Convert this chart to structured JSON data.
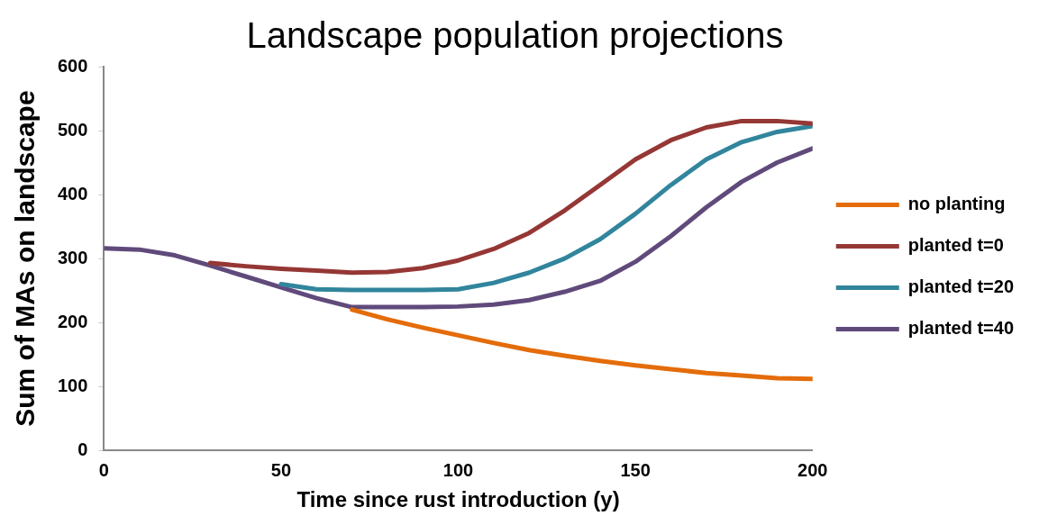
{
  "chart_data": {
    "type": "line",
    "title": "Landscape population projections",
    "xlabel": "Time since rust introduction (y)",
    "ylabel": "Sum of MAs on landscape",
    "x": [
      0,
      10,
      20,
      30,
      40,
      50,
      60,
      70,
      80,
      90,
      100,
      110,
      120,
      130,
      140,
      150,
      160,
      170,
      180,
      190,
      200
    ],
    "xlim": [
      0,
      200
    ],
    "xticks": [
      0,
      50,
      100,
      150,
      200
    ],
    "ylim": [
      0,
      600
    ],
    "yticks": [
      0,
      100,
      200,
      300,
      400,
      500,
      600
    ],
    "grid": false,
    "legend": "right",
    "marker": "none",
    "line_style": "solid",
    "series": [
      {
        "name": "no planting",
        "color": "#e46c0a",
        "values": [
          null,
          null,
          null,
          null,
          null,
          null,
          null,
          220,
          205,
          192,
          180,
          168,
          157,
          148,
          140,
          133,
          127,
          121,
          117,
          113,
          112
        ]
      },
      {
        "name": "planted t=0",
        "color": "#953735",
        "values": [
          null,
          null,
          null,
          293,
          288,
          284,
          281,
          278,
          279,
          285,
          297,
          315,
          340,
          375,
          415,
          455,
          485,
          505,
          515,
          515,
          511
        ]
      },
      {
        "name": "planted t=20",
        "color": "#31859c",
        "values": [
          null,
          null,
          null,
          null,
          null,
          260,
          252,
          251,
          251,
          251,
          252,
          262,
          278,
          300,
          330,
          370,
          415,
          455,
          482,
          498,
          507
        ]
      },
      {
        "name": "planted t=40",
        "color": "#604a7b",
        "values": [
          316,
          314,
          305,
          289,
          272,
          255,
          238,
          224,
          224,
          224,
          225,
          228,
          235,
          248,
          265,
          295,
          335,
          380,
          420,
          450,
          472
        ]
      }
    ]
  }
}
